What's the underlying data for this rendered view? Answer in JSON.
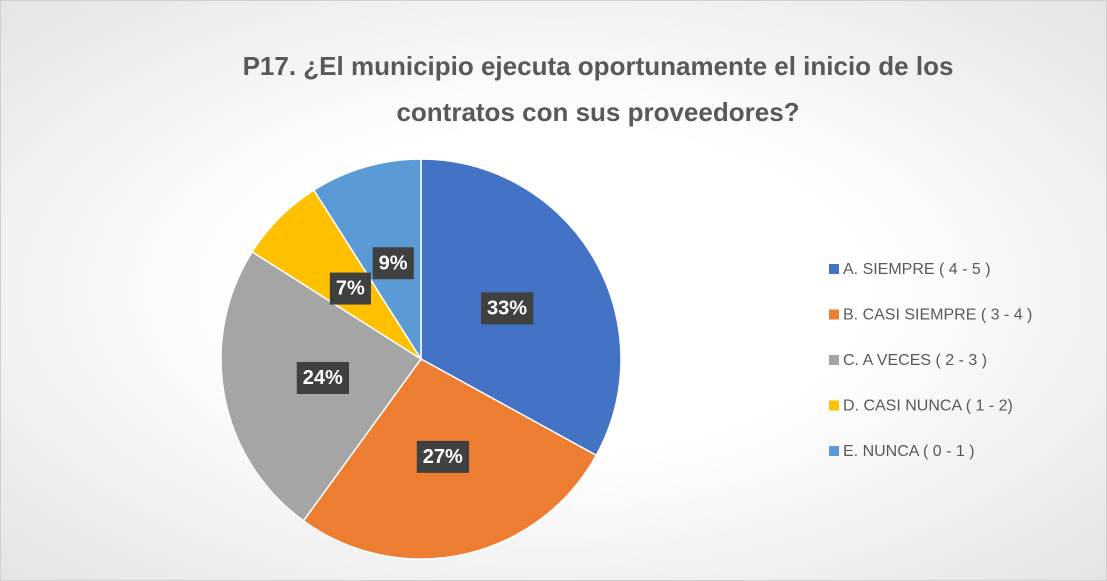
{
  "chart_data": {
    "type": "pie",
    "title": "P17. ¿El municipio ejecuta oportunamente el inicio de los contratos con sus proveedores?",
    "categories": [
      "A. SIEMPRE ( 4 - 5 )",
      "B. CASI SIEMPRE ( 3 - 4 )",
      "C. A VECES ( 2 - 3 )",
      "D. CASI NUNCA ( 1 - 2)",
      "E. NUNCA ( 0 - 1 )"
    ],
    "values": [
      33,
      27,
      24,
      7,
      9
    ],
    "value_labels": [
      "33%",
      "27%",
      "24%",
      "7%",
      "9%"
    ],
    "colors": [
      "#4472c4",
      "#ed7d31",
      "#a5a5a5",
      "#ffc000",
      "#5b9bd5"
    ],
    "legend": "right"
  }
}
